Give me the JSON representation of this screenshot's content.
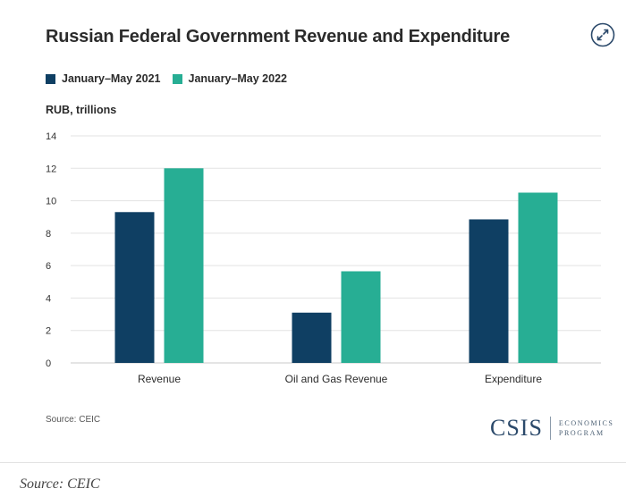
{
  "chart_data": {
    "type": "bar",
    "title": "Russian Federal Government Revenue and Expenditure",
    "ylabel": "RUB, trillions",
    "categories": [
      "Revenue",
      "Oil and Gas Revenue",
      "Expenditure"
    ],
    "series": [
      {
        "name": "January–May 2021",
        "color": "#0f3f63",
        "values": [
          9.3,
          3.1,
          8.85
        ]
      },
      {
        "name": "January–May 2022",
        "color": "#27ae94",
        "values": [
          12.0,
          5.65,
          10.5
        ]
      }
    ],
    "ylim": [
      0,
      14
    ],
    "yticks": [
      "0",
      "2",
      "4",
      "6",
      "8",
      "10",
      "12",
      "14"
    ],
    "grid": true,
    "legend_position": "top-left",
    "source": "Source: CEIC"
  },
  "logo": {
    "word": "CSIS",
    "line1": "ECONOMICS",
    "line2": "PROGRAM"
  },
  "caption": {
    "text": "Source: CEIC"
  },
  "icons": {
    "expand": "expand-arrows-icon"
  }
}
